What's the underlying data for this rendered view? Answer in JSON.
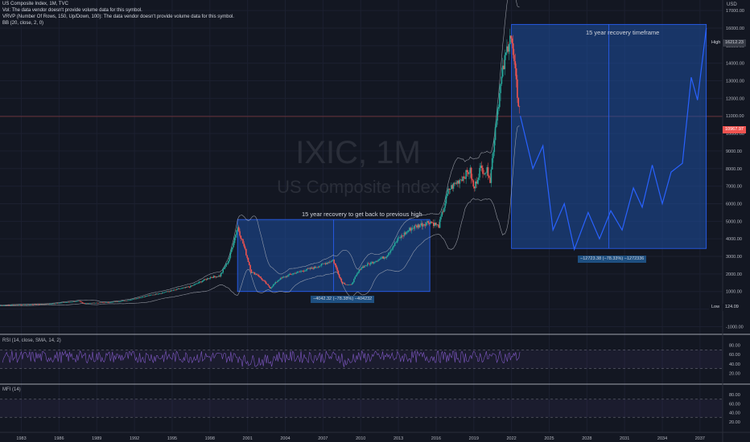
{
  "header": {
    "title": "US Composite Index, 1M, TVC",
    "vol_note": "Vol: The data vendor doesn't provide volume data for this symbol.",
    "vrvp_note": "VRVP (Number Of Rows, 150, Up/Down, 100): The data vendor doesn't provide volume data for this symbol.",
    "bb_note": "BB (20, close, 2, 0)"
  },
  "watermark": {
    "symbol": "IXIC, 1M",
    "name": "US Composite Index"
  },
  "currency": "USD",
  "panes": {
    "rsi_label": "RSI (14, close, SMA, 14, 2)",
    "mfi_label": "MFI (14)"
  },
  "price_tags": {
    "high_label": "High",
    "high_value": "16212.23",
    "current_value": "10967.97",
    "low_label": "Low",
    "low_value": "124.09"
  },
  "annotations": {
    "box1_title": "15 year recovery to get back to previous high",
    "box1_measure": "−4042.32 (−78.38%) −404232",
    "box2_title": "15 year recovery timeframe",
    "box2_measure": "−12723.38 (−78.33%) −1272336"
  },
  "colors": {
    "background": "#131722",
    "bull": "#26a69a",
    "bear": "#ef5350",
    "box_fill": "#1e4fa0",
    "box_border": "#2962ff",
    "projection": "#2962ff",
    "bands": "#b2b5be",
    "rsi": "#7e57c2"
  },
  "chart_data": {
    "type": "line",
    "title": "US Composite Index, 1M, TVC",
    "xlabel": "",
    "ylabel": "",
    "x_ticks": [
      "1983",
      "1986",
      "1989",
      "1992",
      "1995",
      "1998",
      "2001",
      "2004",
      "2007",
      "2010",
      "2013",
      "2016",
      "2019",
      "2022",
      "2025",
      "2028",
      "2031",
      "2034",
      "2037"
    ],
    "y_ticks": [
      -1000,
      0,
      1000,
      2000,
      3000,
      4000,
      5000,
      6000,
      7000,
      8000,
      9000,
      10000,
      11000,
      12000,
      13000,
      14000,
      15000,
      16000,
      17000
    ],
    "ylim": [
      -1300,
      17600
    ],
    "xlim": [
      1981.3,
      2038.8
    ],
    "rsi_ticks": [
      80.0,
      60.0,
      40.0,
      20.0
    ],
    "mfi_ticks": [
      80.0,
      60.0,
      40.0,
      20.0
    ],
    "series": [
      {
        "name": "",
        "x": [
          1981.0,
          1983.0,
          1985.0,
          1987.6,
          1987.9,
          1990.0,
          1991.5,
          1993.0,
          1995.0,
          1996.5,
          1998.0,
          1998.8,
          1999.5,
          2000.2,
          2000.7,
          2001.3,
          2001.8,
          2002.8,
          2003.5,
          2004.5,
          2005.5,
          2006.5,
          2007.8,
          2008.5,
          2009.2,
          2010.0,
          2011.0,
          2012.0,
          2013.0,
          2014.0,
          2015.5,
          2016.2,
          2017.0,
          2018.7,
          2019.0,
          2019.5,
          2020.2,
          2020.3,
          2020.8,
          2021.3,
          2021.9,
          2022.2,
          2022.5,
          2022.7
        ],
        "y": [
          200,
          250,
          280,
          450,
          330,
          380,
          500,
          750,
          1050,
          1300,
          1800,
          1900,
          2800,
          4700,
          3600,
          2100,
          1950,
          1200,
          1700,
          2000,
          2200,
          2400,
          2800,
          1500,
          1350,
          2350,
          2700,
          3000,
          4000,
          4600,
          5000,
          4700,
          6800,
          7900,
          6800,
          8000,
          7800,
          7300,
          11000,
          13500,
          15800,
          14000,
          12000,
          11100
        ]
      },
      {
        "name": "",
        "x": [
          2022.7,
          2023.7,
          2024.5,
          2025.3,
          2026.2,
          2027.0,
          2028.1,
          2029.0,
          2029.9,
          2030.8,
          2031.7,
          2032.4,
          2033.2,
          2034.0,
          2034.7,
          2035.6,
          2036.3,
          2036.8,
          2037.5
        ],
        "y": [
          11000,
          8000,
          9300,
          4500,
          6000,
          3400,
          5500,
          4000,
          5600,
          4500,
          6900,
          5800,
          8200,
          6000,
          7800,
          8300,
          13200,
          11900,
          16000
        ]
      }
    ]
  }
}
